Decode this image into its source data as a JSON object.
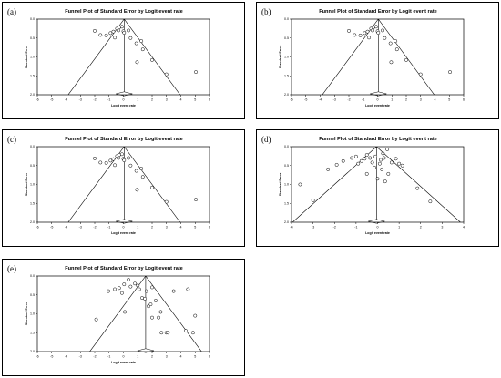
{
  "chart_data": [
    {
      "label": "(a)",
      "type": "scatter",
      "title": "Funnel Plot of Standard Error by Logit event rate",
      "xlabel": "Logit event rate",
      "ylabel": "Standard Error",
      "xlim": [
        -6,
        6
      ],
      "ylim": [
        0,
        2
      ],
      "y_reversed": true,
      "x_ticks": [
        -6,
        -5,
        -4,
        -3,
        -2,
        -1,
        0,
        1,
        2,
        3,
        4,
        5,
        6
      ],
      "y_ticks": [
        "0.0",
        "0.5",
        "1.0",
        "1.5",
        "2.0"
      ],
      "pooled_estimate": 0.05,
      "funnel_halfwidth_at_se2": 3.9,
      "points": [
        [
          -2.0,
          0.31
        ],
        [
          -1.6,
          0.42
        ],
        [
          -1.2,
          0.43
        ],
        [
          -0.9,
          0.37
        ],
        [
          -0.7,
          0.33
        ],
        [
          -0.6,
          0.49
        ],
        [
          -0.45,
          0.25
        ],
        [
          -0.35,
          0.3
        ],
        [
          -0.3,
          0.22
        ],
        [
          -0.1,
          0.2
        ],
        [
          0.0,
          0.32
        ],
        [
          0.05,
          0.36
        ],
        [
          0.35,
          0.3
        ],
        [
          0.5,
          0.5
        ],
        [
          0.9,
          0.64
        ],
        [
          1.25,
          0.58
        ],
        [
          1.35,
          0.8
        ],
        [
          0.95,
          1.14
        ],
        [
          2.0,
          1.08
        ],
        [
          3.0,
          1.46
        ],
        [
          5.05,
          1.4
        ]
      ]
    },
    {
      "label": "(b)",
      "type": "scatter",
      "title": "Funnel Plot of Standard Error by Logit event rate",
      "xlabel": "Logit event rate",
      "ylabel": "Standard Error",
      "xlim": [
        -6,
        6
      ],
      "ylim": [
        0,
        2
      ],
      "y_reversed": true,
      "x_ticks": [
        -6,
        -5,
        -4,
        -3,
        -2,
        -1,
        0,
        1,
        2,
        3,
        4,
        5,
        6
      ],
      "y_ticks": [
        "0.0",
        "0.5",
        "1.0",
        "1.5",
        "2.0"
      ],
      "pooled_estimate": 0.05,
      "funnel_halfwidth_at_se2": 3.9,
      "points": [
        [
          -2.0,
          0.31
        ],
        [
          -1.6,
          0.42
        ],
        [
          -1.2,
          0.43
        ],
        [
          -0.9,
          0.37
        ],
        [
          -0.7,
          0.33
        ],
        [
          -0.6,
          0.49
        ],
        [
          -0.45,
          0.25
        ],
        [
          -0.35,
          0.3
        ],
        [
          -0.3,
          0.22
        ],
        [
          -0.1,
          0.2
        ],
        [
          0.0,
          0.32
        ],
        [
          0.05,
          0.36
        ],
        [
          0.35,
          0.3
        ],
        [
          0.5,
          0.5
        ],
        [
          0.9,
          0.64
        ],
        [
          1.25,
          0.58
        ],
        [
          1.35,
          0.8
        ],
        [
          0.95,
          1.14
        ],
        [
          2.0,
          1.08
        ],
        [
          3.0,
          1.46
        ],
        [
          5.05,
          1.4
        ]
      ]
    },
    {
      "label": "(c)",
      "type": "scatter",
      "title": "Funnel Plot of Standard Error by Logit event rate",
      "xlabel": "Logit event rate",
      "ylabel": "Standard Error",
      "xlim": [
        -6,
        6
      ],
      "ylim": [
        0,
        2
      ],
      "y_reversed": true,
      "x_ticks": [
        -6,
        -5,
        -4,
        -3,
        -2,
        -1,
        0,
        1,
        2,
        3,
        4,
        5,
        6
      ],
      "y_ticks": [
        "0.0",
        "0.5",
        "1.0",
        "1.5",
        "2.0"
      ],
      "pooled_estimate": 0.05,
      "funnel_halfwidth_at_se2": 3.9,
      "points": [
        [
          -2.0,
          0.31
        ],
        [
          -1.6,
          0.42
        ],
        [
          -1.2,
          0.43
        ],
        [
          -0.9,
          0.37
        ],
        [
          -0.7,
          0.33
        ],
        [
          -0.6,
          0.49
        ],
        [
          -0.45,
          0.25
        ],
        [
          -0.35,
          0.3
        ],
        [
          -0.3,
          0.22
        ],
        [
          -0.1,
          0.2
        ],
        [
          0.0,
          0.32
        ],
        [
          0.05,
          0.36
        ],
        [
          0.35,
          0.3
        ],
        [
          0.5,
          0.5
        ],
        [
          0.9,
          0.64
        ],
        [
          1.25,
          0.58
        ],
        [
          1.35,
          0.8
        ],
        [
          0.95,
          1.14
        ],
        [
          2.0,
          1.08
        ],
        [
          3.0,
          1.46
        ],
        [
          5.05,
          1.4
        ]
      ]
    },
    {
      "label": "(d)",
      "type": "scatter",
      "title": "Funnel Plot of Standard Error by Logit event rate",
      "xlabel": "Logit event rate",
      "ylabel": "Standard Error",
      "xlim": [
        -4,
        4
      ],
      "ylim": [
        0,
        2
      ],
      "y_reversed": true,
      "x_ticks": [
        -4,
        -3,
        -2,
        -1,
        0,
        1,
        2,
        3,
        4
      ],
      "y_ticks": [
        "0.0",
        "0.5",
        "1.0",
        "1.5",
        "2.0"
      ],
      "pooled_estimate": -0.05,
      "funnel_halfwidth_at_se2": 3.9,
      "points": [
        [
          -3.6,
          1.0
        ],
        [
          -3.0,
          1.42
        ],
        [
          -2.3,
          0.6
        ],
        [
          -1.9,
          0.48
        ],
        [
          -1.6,
          0.38
        ],
        [
          -1.2,
          0.3
        ],
        [
          -1.0,
          0.26
        ],
        [
          -0.9,
          0.45
        ],
        [
          -0.75,
          0.38
        ],
        [
          -0.6,
          0.32
        ],
        [
          -0.5,
          0.22
        ],
        [
          -0.5,
          0.72
        ],
        [
          -0.35,
          0.3
        ],
        [
          -0.25,
          0.42
        ],
        [
          -0.15,
          0.55
        ],
        [
          -0.1,
          0.26
        ],
        [
          0.0,
          0.85
        ],
        [
          0.1,
          0.45
        ],
        [
          0.15,
          0.35
        ],
        [
          0.2,
          0.6
        ],
        [
          0.25,
          0.18
        ],
        [
          0.3,
          0.3
        ],
        [
          0.35,
          0.92
        ],
        [
          0.45,
          0.07
        ],
        [
          0.5,
          0.72
        ],
        [
          0.65,
          0.42
        ],
        [
          0.85,
          0.32
        ],
        [
          1.0,
          0.45
        ],
        [
          1.15,
          0.5
        ],
        [
          1.85,
          1.1
        ],
        [
          2.45,
          1.45
        ]
      ]
    },
    {
      "label": "(e)",
      "type": "scatter",
      "title": "Funnel Plot of Standard Error by Logit event rate",
      "xlabel": "Logit event rate",
      "ylabel": "Standard Error",
      "xlim": [
        -6,
        6
      ],
      "ylim": [
        0,
        2
      ],
      "y_reversed": true,
      "x_ticks": [
        -6,
        -5,
        -4,
        -3,
        -2,
        -1,
        0,
        1,
        2,
        3,
        4,
        5,
        6
      ],
      "y_ticks": [
        "0.0",
        "0.5",
        "1.0",
        "1.5",
        "2.0"
      ],
      "pooled_estimate": 1.55,
      "funnel_halfwidth_at_se2": 3.9,
      "points": [
        [
          -1.9,
          1.15
        ],
        [
          -1.05,
          0.4
        ],
        [
          -0.6,
          0.35
        ],
        [
          -0.3,
          0.32
        ],
        [
          -0.1,
          0.45
        ],
        [
          0.05,
          0.22
        ],
        [
          0.35,
          0.1
        ],
        [
          0.5,
          0.28
        ],
        [
          0.8,
          0.2
        ],
        [
          1.0,
          0.25
        ],
        [
          0.1,
          0.95
        ],
        [
          1.1,
          0.35
        ],
        [
          1.3,
          0.58
        ],
        [
          1.5,
          0.6
        ],
        [
          1.6,
          0.4
        ],
        [
          1.75,
          0.8
        ],
        [
          1.9,
          0.75
        ],
        [
          2.0,
          0.3
        ],
        [
          2.0,
          1.1
        ],
        [
          2.25,
          0.65
        ],
        [
          2.45,
          1.1
        ],
        [
          2.6,
          0.95
        ],
        [
          2.65,
          1.5
        ],
        [
          3.0,
          1.5
        ],
        [
          3.1,
          1.5
        ],
        [
          3.5,
          0.4
        ],
        [
          4.35,
          1.45
        ],
        [
          4.5,
          0.35
        ],
        [
          4.85,
          1.5
        ],
        [
          5.0,
          1.05
        ]
      ]
    }
  ]
}
